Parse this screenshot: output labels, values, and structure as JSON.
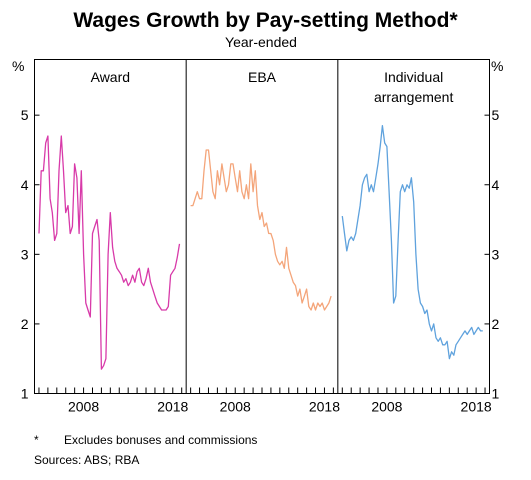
{
  "chart_data": {
    "type": "line",
    "title": "Wages Growth by Pay-setting Method*",
    "subtitle": "Year-ended",
    "ylabel_left": "%",
    "ylabel_right": "%",
    "ylim": [
      1,
      5.8
    ],
    "yticks": [
      1,
      2,
      3,
      4,
      5
    ],
    "xlim": [
      2002.5,
      2019.5
    ],
    "xtick_labels": [
      2008,
      2018
    ],
    "grid": false,
    "footnotes": {
      "marker": "*",
      "text": "Excludes bonuses and commissions",
      "sources": "Sources:   ABS; RBA"
    },
    "panels": [
      {
        "name": "Award",
        "name_lines": [
          "Award"
        ],
        "color": "#d83aa9",
        "x": [
          2003.0,
          2003.25,
          2003.5,
          2003.75,
          2004.0,
          2004.25,
          2004.5,
          2004.75,
          2005.0,
          2005.25,
          2005.5,
          2005.75,
          2006.0,
          2006.25,
          2006.5,
          2006.75,
          2007.0,
          2007.25,
          2007.5,
          2007.75,
          2008.0,
          2008.25,
          2008.5,
          2008.75,
          2009.0,
          2009.25,
          2009.5,
          2009.75,
          2010.0,
          2010.25,
          2010.5,
          2010.75,
          2011.0,
          2011.25,
          2011.5,
          2011.75,
          2012.0,
          2012.25,
          2012.5,
          2012.75,
          2013.0,
          2013.25,
          2013.5,
          2013.75,
          2014.0,
          2014.25,
          2014.5,
          2014.75,
          2015.0,
          2015.25,
          2015.5,
          2015.75,
          2016.0,
          2016.25,
          2016.5,
          2016.75,
          2017.0,
          2017.25,
          2017.5,
          2017.75,
          2018.0,
          2018.25,
          2018.5,
          2018.75
        ],
        "y": [
          3.3,
          4.2,
          4.2,
          4.6,
          4.7,
          3.8,
          3.6,
          3.2,
          3.3,
          4.2,
          4.7,
          4.2,
          3.6,
          3.7,
          3.3,
          3.4,
          4.3,
          4.1,
          3.3,
          4.2,
          3.0,
          2.3,
          2.2,
          2.1,
          3.3,
          3.4,
          3.5,
          3.2,
          1.35,
          1.4,
          1.5,
          3.0,
          3.6,
          3.1,
          2.9,
          2.8,
          2.75,
          2.7,
          2.6,
          2.65,
          2.55,
          2.6,
          2.7,
          2.6,
          2.75,
          2.8,
          2.6,
          2.55,
          2.65,
          2.8,
          2.6,
          2.5,
          2.4,
          2.3,
          2.25,
          2.2,
          2.2,
          2.2,
          2.25,
          2.7,
          2.75,
          2.8,
          2.95,
          3.15
        ]
      },
      {
        "name": "EBA",
        "name_lines": [
          "EBA"
        ],
        "color": "#f4a57a",
        "x": [
          2003.0,
          2003.25,
          2003.5,
          2003.75,
          2004.0,
          2004.25,
          2004.5,
          2004.75,
          2005.0,
          2005.25,
          2005.5,
          2005.75,
          2006.0,
          2006.25,
          2006.5,
          2006.75,
          2007.0,
          2007.25,
          2007.5,
          2007.75,
          2008.0,
          2008.25,
          2008.5,
          2008.75,
          2009.0,
          2009.25,
          2009.5,
          2009.75,
          2010.0,
          2010.25,
          2010.5,
          2010.75,
          2011.0,
          2011.25,
          2011.5,
          2011.75,
          2012.0,
          2012.25,
          2012.5,
          2012.75,
          2013.0,
          2013.25,
          2013.5,
          2013.75,
          2014.0,
          2014.25,
          2014.5,
          2014.75,
          2015.0,
          2015.25,
          2015.5,
          2015.75,
          2016.0,
          2016.25,
          2016.5,
          2016.75,
          2017.0,
          2017.25,
          2017.5,
          2017.75,
          2018.0,
          2018.25,
          2018.5,
          2018.75
        ],
        "y": [
          3.7,
          3.7,
          3.8,
          3.9,
          3.8,
          3.8,
          4.2,
          4.5,
          4.5,
          4.2,
          3.9,
          3.8,
          4.2,
          4.0,
          4.3,
          4.1,
          3.9,
          4.0,
          4.3,
          4.3,
          4.1,
          3.9,
          4.2,
          3.9,
          3.8,
          4.0,
          3.8,
          4.3,
          3.9,
          4.2,
          3.7,
          3.5,
          3.6,
          3.4,
          3.45,
          3.3,
          3.3,
          3.2,
          3.0,
          2.9,
          2.85,
          2.9,
          2.8,
          3.1,
          2.8,
          2.7,
          2.6,
          2.55,
          2.4,
          2.5,
          2.3,
          2.4,
          2.5,
          2.25,
          2.2,
          2.3,
          2.2,
          2.3,
          2.25,
          2.3,
          2.2,
          2.25,
          2.3,
          2.4
        ]
      },
      {
        "name": "Individual arrangement",
        "name_lines": [
          "Individual",
          "arrangement"
        ],
        "color": "#5fa2dd",
        "x": [
          2003.0,
          2003.25,
          2003.5,
          2003.75,
          2004.0,
          2004.25,
          2004.5,
          2004.75,
          2005.0,
          2005.25,
          2005.5,
          2005.75,
          2006.0,
          2006.25,
          2006.5,
          2006.75,
          2007.0,
          2007.25,
          2007.5,
          2007.75,
          2008.0,
          2008.25,
          2008.5,
          2008.75,
          2009.0,
          2009.25,
          2009.5,
          2009.75,
          2010.0,
          2010.25,
          2010.5,
          2010.75,
          2011.0,
          2011.25,
          2011.5,
          2011.75,
          2012.0,
          2012.25,
          2012.5,
          2012.75,
          2013.0,
          2013.25,
          2013.5,
          2013.75,
          2014.0,
          2014.25,
          2014.5,
          2014.75,
          2015.0,
          2015.25,
          2015.5,
          2015.75,
          2016.0,
          2016.25,
          2016.5,
          2016.75,
          2017.0,
          2017.25,
          2017.5,
          2017.75,
          2018.0,
          2018.25,
          2018.5,
          2018.75
        ],
        "y": [
          3.55,
          3.3,
          3.05,
          3.2,
          3.25,
          3.2,
          3.3,
          3.5,
          3.7,
          4.0,
          4.1,
          4.15,
          3.9,
          4.0,
          3.9,
          4.1,
          4.3,
          4.55,
          4.85,
          4.6,
          4.55,
          3.9,
          3.2,
          2.3,
          2.4,
          3.2,
          3.9,
          4.0,
          3.9,
          4.0,
          3.95,
          4.1,
          3.75,
          3.0,
          2.5,
          2.3,
          2.25,
          2.15,
          2.2,
          2.0,
          1.9,
          2.0,
          1.8,
          1.75,
          1.8,
          1.7,
          1.7,
          1.75,
          1.5,
          1.6,
          1.55,
          1.7,
          1.75,
          1.8,
          1.85,
          1.9,
          1.85,
          1.9,
          1.95,
          1.85,
          1.9,
          1.95,
          1.9,
          1.9
        ]
      }
    ]
  }
}
